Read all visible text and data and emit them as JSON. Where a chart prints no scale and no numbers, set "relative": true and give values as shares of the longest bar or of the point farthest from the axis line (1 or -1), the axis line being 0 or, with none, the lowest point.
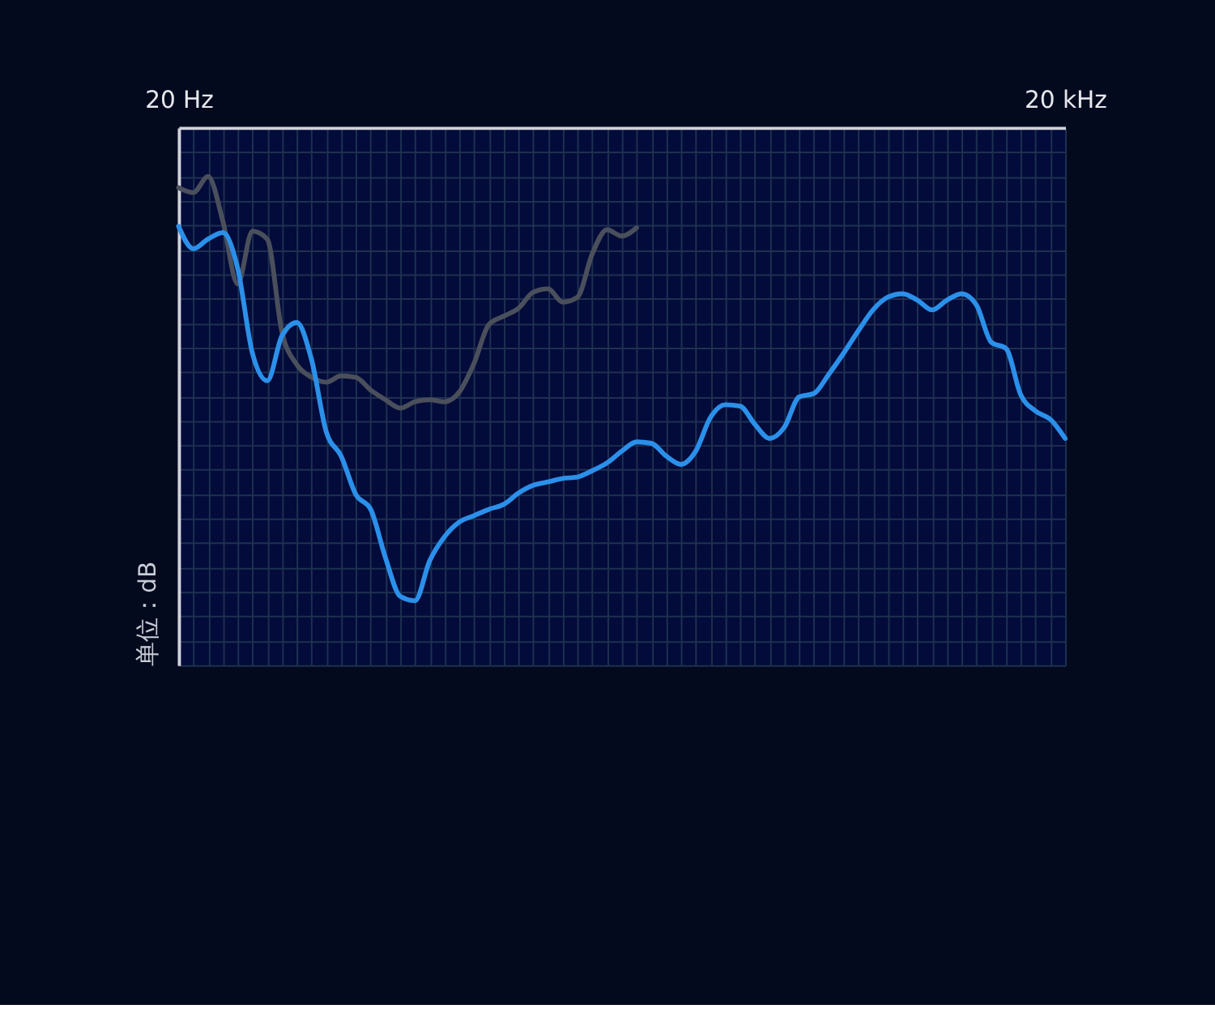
{
  "chart_data": {
    "type": "line",
    "relative": true,
    "ylabel": "单位：dB",
    "grid": true,
    "legend": false,
    "marker": "none",
    "line_style": "solid",
    "categories": [
      "20 Hz",
      null,
      null,
      null,
      null,
      null,
      null,
      null,
      null,
      null,
      null,
      null,
      null,
      null,
      null,
      null,
      null,
      null,
      null,
      null,
      null,
      null,
      null,
      null,
      null,
      null,
      null,
      null,
      null,
      null,
      null,
      null,
      null,
      null,
      null,
      null,
      null,
      null,
      null,
      null,
      null,
      null,
      null,
      null,
      null,
      null,
      null,
      null,
      null,
      null,
      null,
      null,
      null,
      null,
      null,
      null,
      null,
      null,
      null,
      null,
      "20 kHz"
    ],
    "series": [
      {
        "color": "#4a4f5c",
        "values": [
          0.977,
          0.967,
          1,
          0.908,
          0.78,
          0.888,
          0.872,
          0.681,
          0.615,
          0.589,
          0.579,
          0.592,
          0.589,
          0.563,
          0.543,
          0.526,
          0.539,
          0.543,
          0.539,
          0.559,
          0.618,
          0.697,
          0.714,
          0.73,
          0.763,
          0.77,
          0.743,
          0.753,
          0.842,
          0.891,
          0.878,
          0.895,
          null,
          null,
          null,
          null,
          null,
          null,
          null,
          null,
          null,
          null,
          null,
          null,
          null,
          null,
          null,
          null,
          null,
          null,
          null,
          null,
          null,
          null,
          null,
          null,
          null,
          null,
          null,
          null,
          null
        ]
      },
      {
        "color": "#2b90ea",
        "values": [
          0.898,
          0.852,
          0.872,
          0.885,
          0.812,
          0.638,
          0.582,
          0.674,
          0.701,
          0.625,
          0.477,
          0.428,
          0.349,
          0.319,
          0.22,
          0.141,
          0.132,
          0.214,
          0.263,
          0.293,
          0.306,
          0.319,
          0.329,
          0.352,
          0.368,
          0.375,
          0.382,
          0.385,
          0.398,
          0.414,
          0.438,
          0.457,
          0.454,
          0.428,
          0.411,
          0.438,
          0.507,
          0.533,
          0.53,
          0.493,
          0.464,
          0.487,
          0.549,
          0.556,
          0.595,
          0.638,
          0.684,
          0.727,
          0.753,
          0.76,
          0.747,
          0.727,
          0.747,
          0.76,
          0.737,
          0.661,
          0.648,
          0.553,
          0.52,
          0.503,
          0.464
        ]
      }
    ]
  }
}
